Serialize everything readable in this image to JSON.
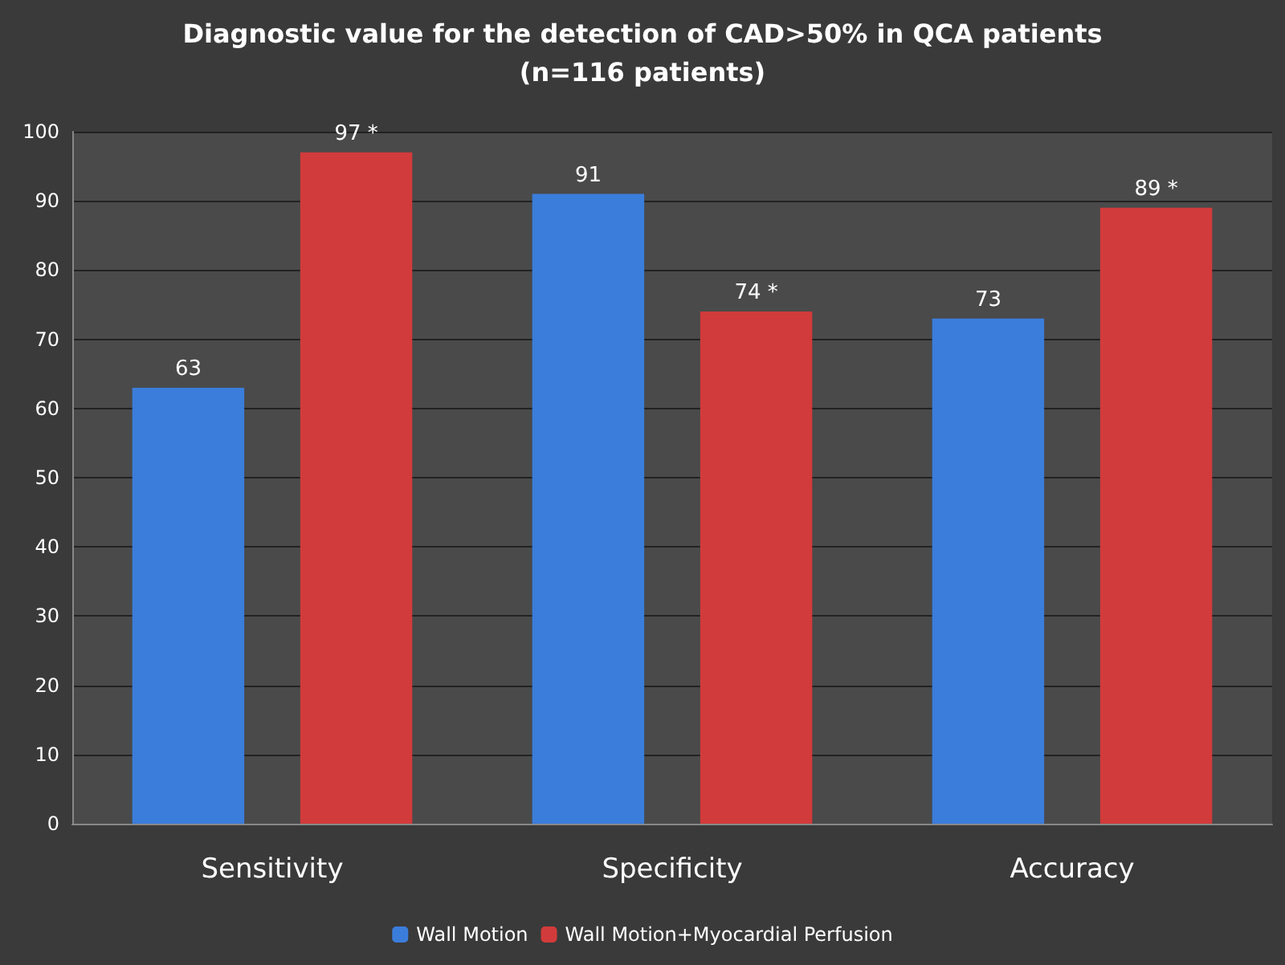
{
  "chart_data": {
    "type": "bar",
    "title": "Diagnostic value for the detection of CAD>50% in QCA patients\n(n=116 patients)",
    "categories": [
      "Sensitivity",
      "Specificity",
      "Accuracy"
    ],
    "series": [
      {
        "name": "Wall Motion",
        "color": "#3b7ddb",
        "values": [
          63,
          91,
          73
        ],
        "value_labels": [
          "63",
          "91",
          "73"
        ]
      },
      {
        "name": "Wall Motion+Myocardial Perfusion",
        "color": "#d23b3b",
        "values": [
          97,
          74,
          89
        ],
        "value_labels": [
          "97 *",
          "74 *",
          "89 *"
        ]
      }
    ],
    "ylim": [
      0,
      100
    ],
    "yticks": [
      0,
      10,
      20,
      30,
      40,
      50,
      60,
      70,
      80,
      90,
      100
    ],
    "grid": "y",
    "legend": "bottom"
  }
}
